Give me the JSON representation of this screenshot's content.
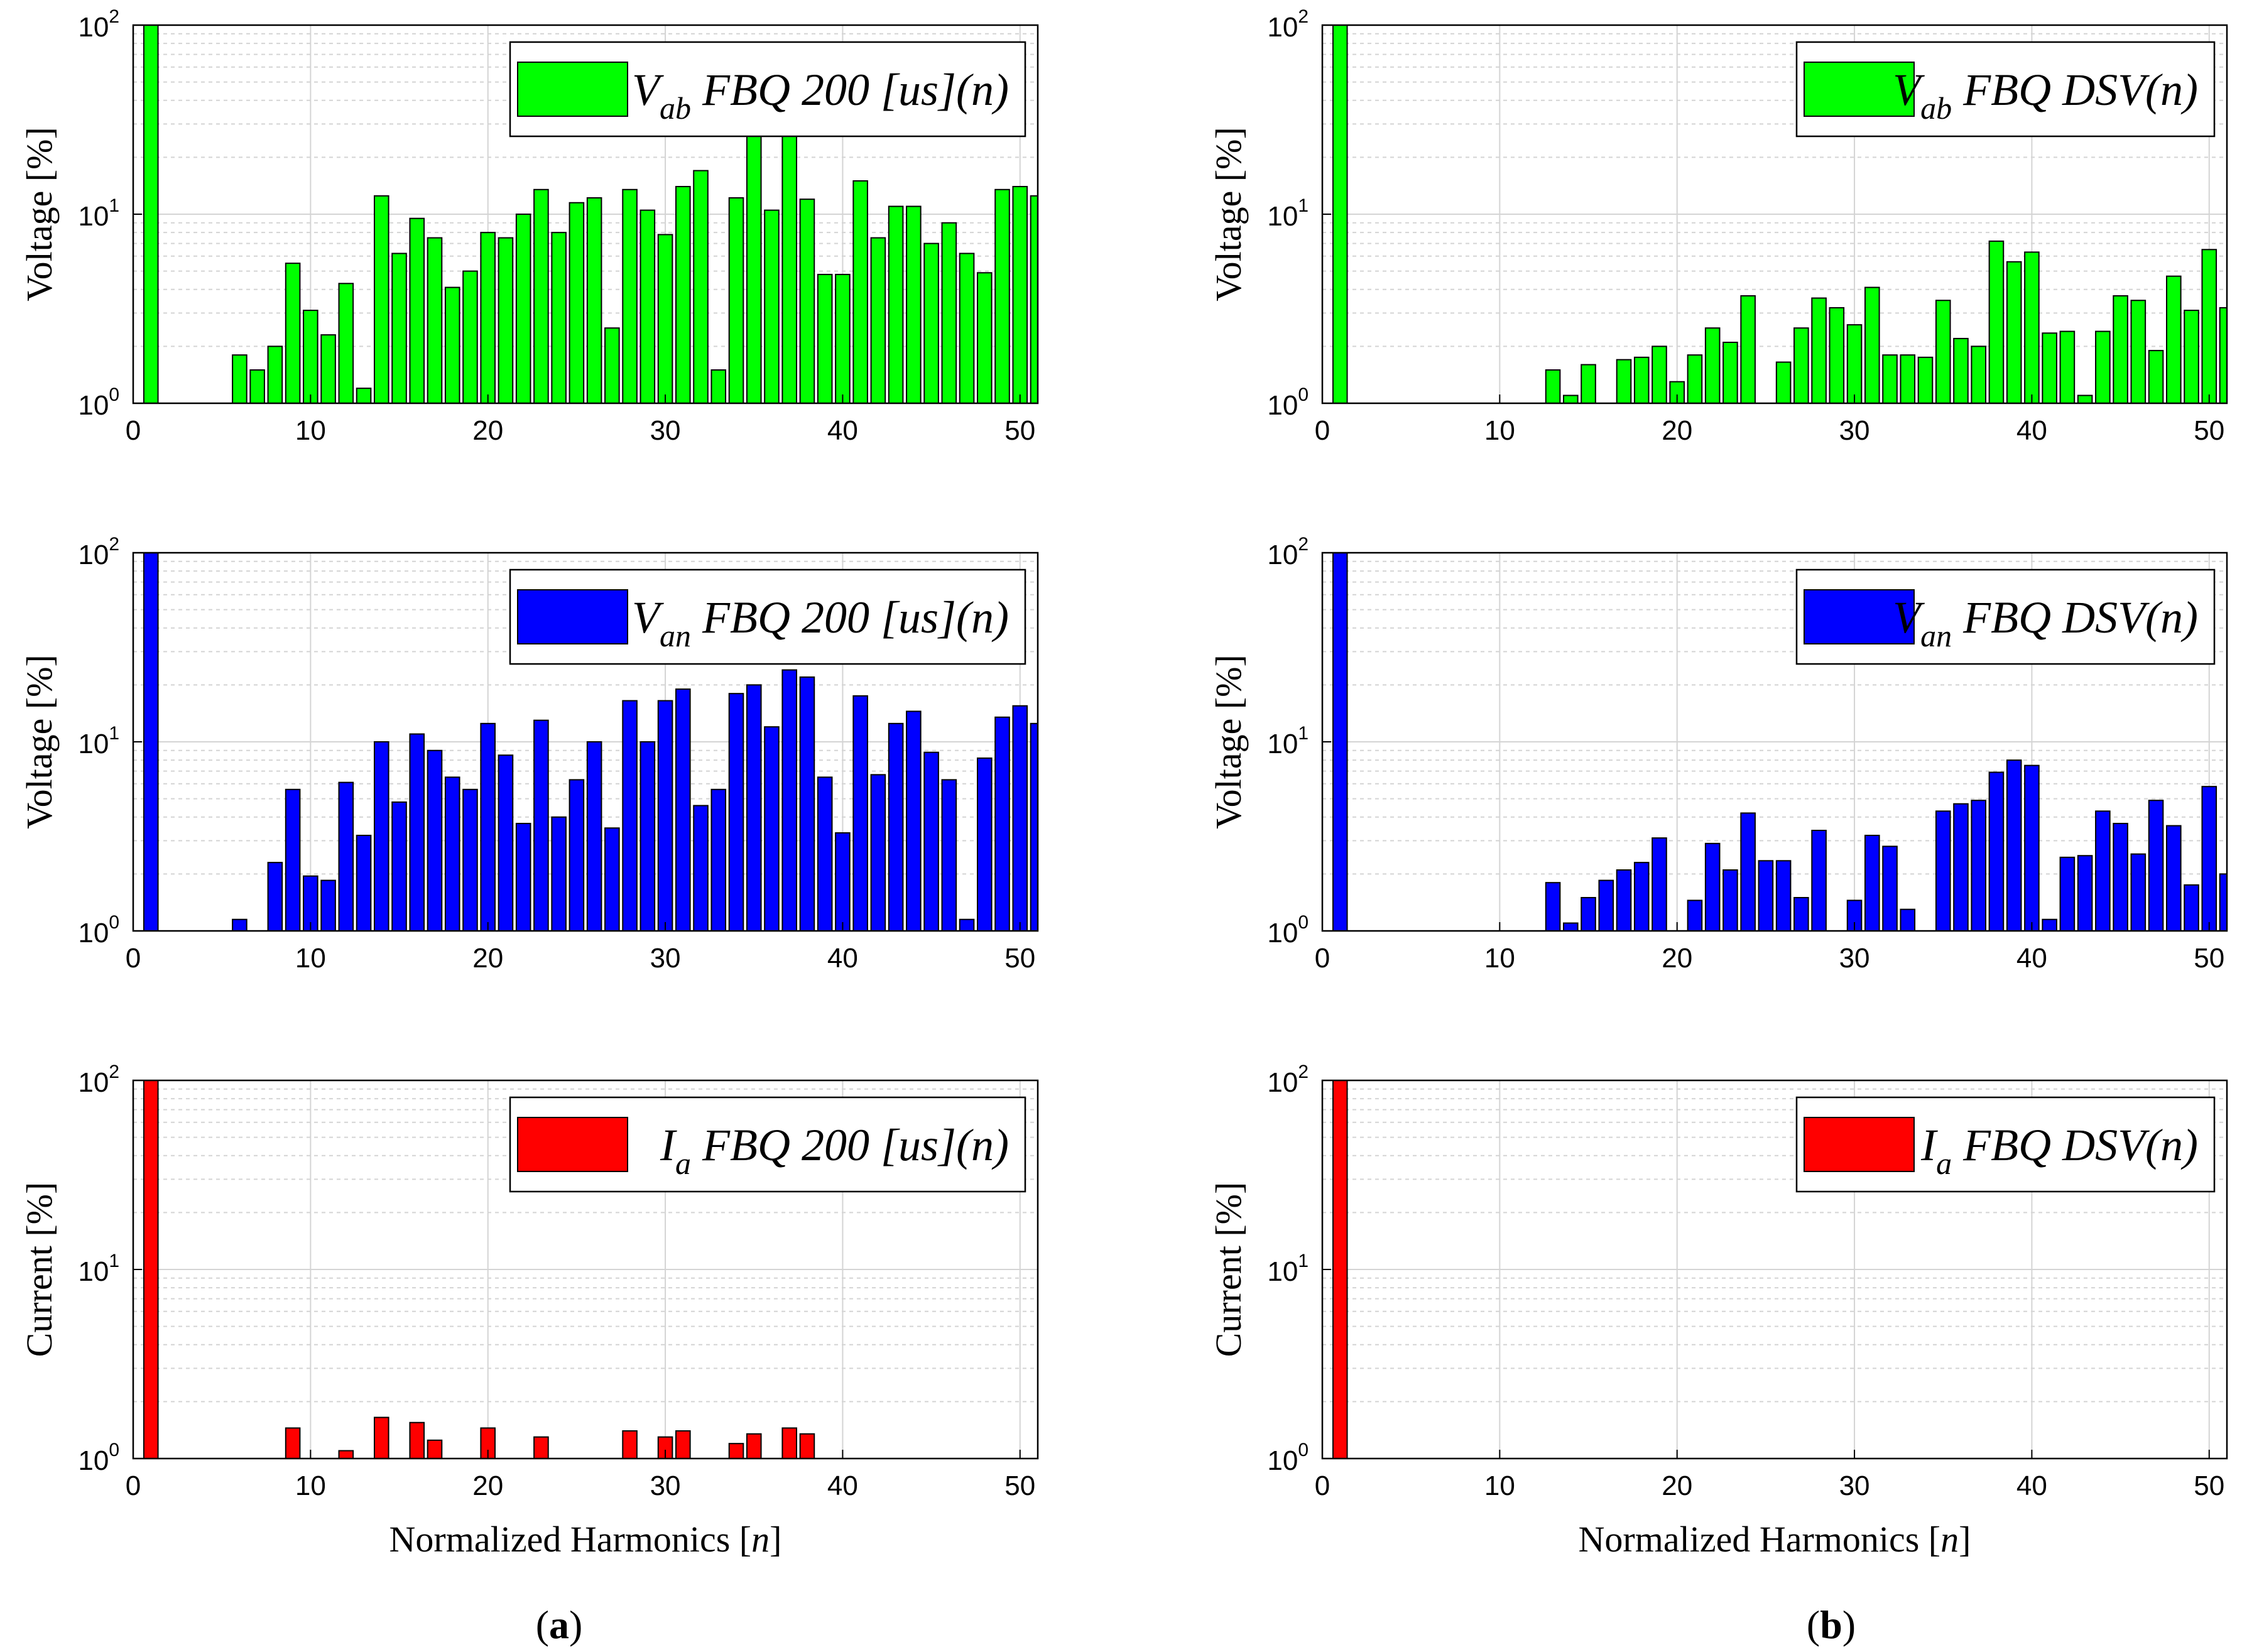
{
  "figure": {
    "panel_labels": [
      {
        "open": "(",
        "letter": "a",
        "close": ")"
      },
      {
        "open": "(",
        "letter": "b",
        "close": ")"
      }
    ]
  },
  "colors": {
    "green": "#00ff00",
    "blue": "#0000ff",
    "red": "#ff0000",
    "edge": "#000000"
  },
  "chart_data": [
    {
      "type": "bar",
      "yscale": "log",
      "ylim": [
        1,
        100
      ],
      "xlim": [
        0,
        51
      ],
      "xticks": [
        "0",
        "10",
        "20",
        "30",
        "40",
        "50"
      ],
      "yticks": [
        {
          "base": "10",
          "exp": "0"
        },
        {
          "base": "10",
          "exp": "1"
        },
        {
          "base": "10",
          "exp": "2"
        }
      ],
      "ylabel": "Voltage [%]",
      "xlabel": "",
      "legend": {
        "main": "V",
        "sub": "ab",
        "rest": " FBQ 200 [us](n)"
      },
      "color": "green",
      "x": [
        1,
        6,
        7,
        8,
        9,
        10,
        11,
        12,
        13,
        14,
        15,
        16,
        17,
        18,
        19,
        20,
        21,
        22,
        23,
        24,
        25,
        26,
        27,
        28,
        29,
        30,
        31,
        32,
        33,
        34,
        35,
        36,
        37,
        38,
        39,
        40,
        41,
        42,
        43,
        44,
        45,
        46,
        47,
        48,
        49,
        50,
        51
      ],
      "values": [
        100,
        1.8,
        1.5,
        2.0,
        5.5,
        3.1,
        2.3,
        4.3,
        1.2,
        12.5,
        6.2,
        9.5,
        7.5,
        4.1,
        5.0,
        8.0,
        7.5,
        10,
        13.5,
        8.0,
        11.5,
        12.2,
        2.5,
        13.5,
        10.5,
        7.8,
        14,
        17,
        1.5,
        12.2,
        28,
        10.5,
        30,
        12,
        4.8,
        4.8,
        15,
        7.5,
        11,
        11,
        7.0,
        9.0,
        6.2,
        4.9,
        13.5,
        14,
        12.5
      ]
    },
    {
      "type": "bar",
      "yscale": "log",
      "ylim": [
        1,
        100
      ],
      "xlim": [
        0,
        51
      ],
      "xticks": [
        "0",
        "10",
        "20",
        "30",
        "40",
        "50"
      ],
      "yticks": [
        {
          "base": "10",
          "exp": "0"
        },
        {
          "base": "10",
          "exp": "1"
        },
        {
          "base": "10",
          "exp": "2"
        }
      ],
      "ylabel": "Voltage [%]",
      "xlabel": "",
      "legend": {
        "main": "V",
        "sub": "ab",
        "rest": " FBQ DSV(n)"
      },
      "color": "green",
      "x": [
        1,
        13,
        14,
        15,
        17,
        18,
        19,
        20,
        21,
        22,
        23,
        24,
        26,
        27,
        28,
        29,
        30,
        31,
        32,
        33,
        34,
        35,
        36,
        37,
        38,
        39,
        40,
        41,
        42,
        43,
        44,
        45,
        46,
        47,
        48,
        49,
        50,
        51
      ],
      "values": [
        100,
        1.5,
        1.1,
        1.6,
        1.7,
        1.75,
        2.0,
        1.3,
        1.8,
        2.5,
        2.1,
        3.7,
        1.65,
        2.5,
        3.6,
        3.2,
        2.6,
        4.1,
        1.8,
        1.8,
        1.75,
        3.5,
        2.2,
        2.0,
        7.2,
        5.6,
        6.3,
        2.35,
        2.4,
        1.1,
        2.4,
        3.7,
        3.5,
        1.9,
        4.7,
        3.1,
        6.5,
        3.2
      ]
    },
    {
      "type": "bar",
      "yscale": "log",
      "ylim": [
        1,
        100
      ],
      "xlim": [
        0,
        51
      ],
      "xticks": [
        "0",
        "10",
        "20",
        "30",
        "40",
        "50"
      ],
      "yticks": [
        {
          "base": "10",
          "exp": "0"
        },
        {
          "base": "10",
          "exp": "1"
        },
        {
          "base": "10",
          "exp": "2"
        }
      ],
      "ylabel": "Voltage [%]",
      "xlabel": "",
      "legend": {
        "main": "V",
        "sub": "an",
        "rest": " FBQ 200 [us](n)"
      },
      "color": "blue",
      "x": [
        1,
        6,
        8,
        9,
        10,
        11,
        12,
        13,
        14,
        15,
        16,
        17,
        18,
        19,
        20,
        21,
        22,
        23,
        24,
        25,
        26,
        27,
        28,
        29,
        30,
        31,
        32,
        33,
        34,
        35,
        36,
        37,
        38,
        39,
        40,
        41,
        42,
        43,
        44,
        45,
        46,
        47,
        48,
        49,
        50,
        51
      ],
      "values": [
        100,
        1.15,
        2.3,
        5.6,
        1.95,
        1.85,
        6.1,
        3.2,
        10,
        4.8,
        11,
        9.0,
        6.5,
        5.6,
        12.5,
        8.5,
        3.7,
        13,
        4.0,
        6.3,
        10,
        3.5,
        16.5,
        10,
        16.5,
        19,
        4.6,
        5.6,
        18,
        20,
        12,
        24,
        22,
        6.5,
        3.3,
        17.5,
        6.7,
        12.5,
        14.5,
        8.8,
        6.3,
        1.15,
        8.2,
        13.5,
        15.5,
        12.5
      ]
    },
    {
      "type": "bar",
      "yscale": "log",
      "ylim": [
        1,
        100
      ],
      "xlim": [
        0,
        51
      ],
      "xticks": [
        "0",
        "10",
        "20",
        "30",
        "40",
        "50"
      ],
      "yticks": [
        {
          "base": "10",
          "exp": "0"
        },
        {
          "base": "10",
          "exp": "1"
        },
        {
          "base": "10",
          "exp": "2"
        }
      ],
      "ylabel": "Voltage [%]",
      "xlabel": "",
      "legend": {
        "main": "V",
        "sub": "an",
        "rest": " FBQ DSV(n)"
      },
      "color": "blue",
      "x": [
        1,
        13,
        14,
        15,
        16,
        17,
        18,
        19,
        21,
        22,
        23,
        24,
        25,
        26,
        27,
        28,
        30,
        31,
        32,
        33,
        35,
        36,
        37,
        38,
        39,
        40,
        41,
        42,
        43,
        44,
        45,
        46,
        47,
        48,
        49,
        50,
        51
      ],
      "values": [
        100,
        1.8,
        1.1,
        1.5,
        1.85,
        2.1,
        2.3,
        3.1,
        1.45,
        2.9,
        2.1,
        4.2,
        2.35,
        2.35,
        1.5,
        3.4,
        1.45,
        3.2,
        2.8,
        1.3,
        4.3,
        4.7,
        4.9,
        6.9,
        8.0,
        7.5,
        1.15,
        2.45,
        2.5,
        4.3,
        3.7,
        2.55,
        4.9,
        3.6,
        1.75,
        5.8,
        2.0
      ]
    },
    {
      "type": "bar",
      "yscale": "log",
      "ylim": [
        1,
        100
      ],
      "xlim": [
        0,
        51
      ],
      "xticks": [
        "0",
        "10",
        "20",
        "30",
        "40",
        "50"
      ],
      "yticks": [
        {
          "base": "10",
          "exp": "0"
        },
        {
          "base": "10",
          "exp": "1"
        },
        {
          "base": "10",
          "exp": "2"
        }
      ],
      "ylabel": "Current [%]",
      "xlabel": "Normalized Harmonics [n]",
      "legend": {
        "main": "I",
        "sub": "a",
        "rest": " FBQ 200 [us](n)"
      },
      "color": "red",
      "x": [
        1,
        9,
        12,
        14,
        16,
        17,
        20,
        23,
        28,
        30,
        31,
        34,
        35,
        37,
        38
      ],
      "values": [
        100,
        1.45,
        1.1,
        1.65,
        1.55,
        1.25,
        1.45,
        1.3,
        1.4,
        1.3,
        1.4,
        1.2,
        1.35,
        1.45,
        1.35
      ]
    },
    {
      "type": "bar",
      "yscale": "log",
      "ylim": [
        1,
        100
      ],
      "xlim": [
        0,
        51
      ],
      "xticks": [
        "0",
        "10",
        "20",
        "30",
        "40",
        "50"
      ],
      "yticks": [
        {
          "base": "10",
          "exp": "0"
        },
        {
          "base": "10",
          "exp": "1"
        },
        {
          "base": "10",
          "exp": "2"
        }
      ],
      "ylabel": "Current [%]",
      "xlabel": "Normalized Harmonics [n]",
      "legend": {
        "main": "I",
        "sub": "a",
        "rest": " FBQ DSV(n)"
      },
      "color": "red",
      "x": [
        1
      ],
      "values": [
        100
      ]
    }
  ]
}
